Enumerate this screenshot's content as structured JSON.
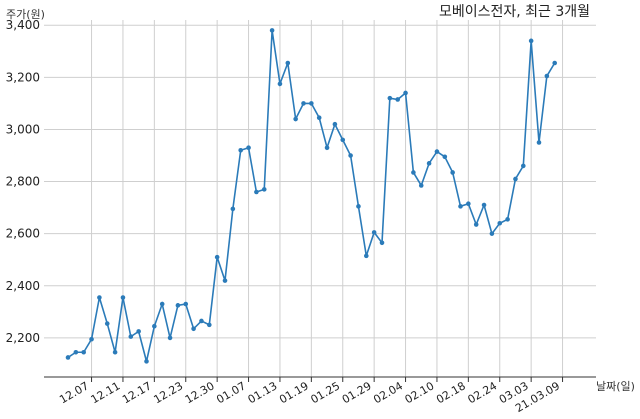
{
  "chart_data": {
    "type": "line",
    "title": "모베이스전자, 최근 3개월",
    "xlabel": "날짜(일)",
    "ylabel": "주가(원)",
    "ylim": [
      2050,
      3420
    ],
    "y_ticks": [
      2200,
      2400,
      2600,
      2800,
      3000,
      3200,
      3400
    ],
    "y_tick_labels": [
      "2,200",
      "2,400",
      "2,600",
      "2,800",
      "3,000",
      "3,200",
      "3,400"
    ],
    "grid": true,
    "color": "#2b7bb9",
    "x_tick_labels": [
      "12.07",
      "12.11",
      "12.17",
      "12.23",
      "12.30",
      "01.07",
      "01.13",
      "01.19",
      "01.25",
      "01.29",
      "02.04",
      "02.10",
      "02.18",
      "02.24",
      "03.03",
      "21.03.09"
    ],
    "x_tick_index": [
      4,
      8,
      12,
      16,
      20,
      24,
      28,
      32,
      36,
      40,
      44,
      48,
      52,
      56,
      60,
      64
    ],
    "series": [
      {
        "values": [
          2125,
          2145,
          2145,
          2195,
          2355,
          2255,
          2145,
          2355,
          2205,
          2225,
          2110,
          2245,
          2330,
          2200,
          2325,
          2330,
          2235,
          2265,
          2250,
          2510,
          2420,
          2695,
          2920,
          2930,
          2760,
          2770,
          3380,
          3175,
          3255,
          3040,
          3100,
          3100,
          3045,
          2930,
          3020,
          2960,
          2900,
          2705,
          2515,
          2605,
          2565,
          3120,
          3115,
          3140,
          2835,
          2785,
          2870,
          2915,
          2895,
          2835,
          2705,
          2715,
          2635,
          2710,
          2600,
          2640,
          2655,
          2810,
          2860,
          3340,
          2950,
          3205,
          3255
        ]
      }
    ]
  }
}
